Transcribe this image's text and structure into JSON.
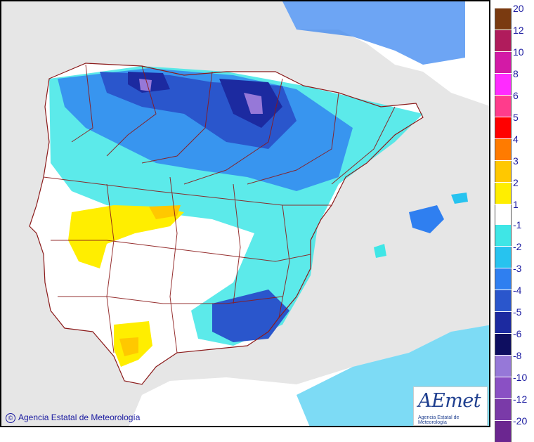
{
  "map": {
    "title": "",
    "copyright": "Agencia Estatal de Meteorología",
    "logo_text": "AEmet",
    "logo_subtext": "Agencia Estatal de Meteorología",
    "colors": {
      "sea": "#e6e6e6",
      "land_neutral": "#ffffff",
      "borders": "#8b1a1a"
    }
  },
  "legend": {
    "positive": [
      {
        "label": "20",
        "color": "#7a3a10"
      },
      {
        "label": "12",
        "color": "#b01c5c"
      },
      {
        "label": "10",
        "color": "#d31aa6"
      },
      {
        "label": "8",
        "color": "#ff2bff"
      },
      {
        "label": "6",
        "color": "#ff3c8c"
      },
      {
        "label": "5",
        "color": "#ff0000"
      },
      {
        "label": "4",
        "color": "#ff7b00"
      },
      {
        "label": "3",
        "color": "#ffc800"
      },
      {
        "label": "2",
        "color": "#ffee00"
      },
      {
        "label": "1",
        "color": "#ffffff"
      }
    ],
    "negative": [
      {
        "label": "-1",
        "color": "#3fe6e6"
      },
      {
        "label": "-2",
        "color": "#27c3ef"
      },
      {
        "label": "-3",
        "color": "#2f7ff0"
      },
      {
        "label": "-4",
        "color": "#2a56cc"
      },
      {
        "label": "-5",
        "color": "#1c2aa0"
      },
      {
        "label": "-6",
        "color": "#0e0e60"
      },
      {
        "label": "-8",
        "color": "#9678d8"
      },
      {
        "label": "-10",
        "color": "#8a50c4"
      },
      {
        "label": "-12",
        "color": "#7a3aa8"
      },
      {
        "label": "-20",
        "color": "#6b2690"
      }
    ]
  }
}
